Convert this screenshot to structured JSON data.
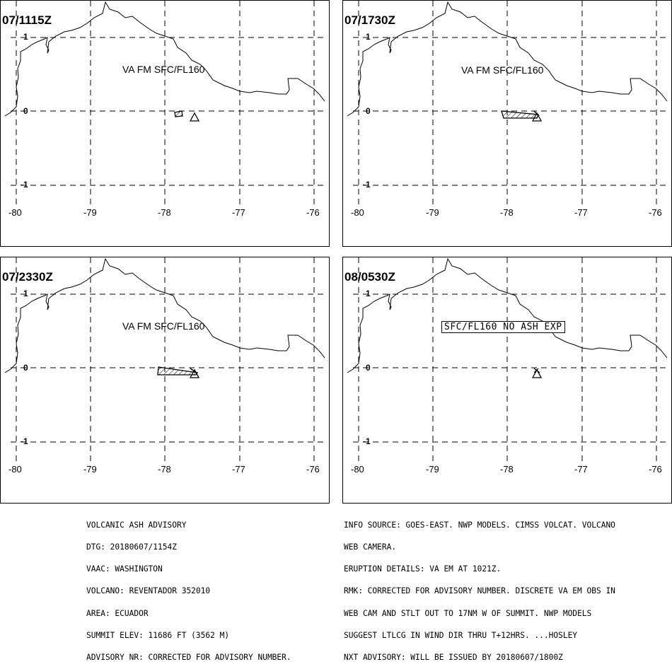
{
  "panels": [
    {
      "time": "07/1115Z",
      "label": "VA FM SFC/FL160",
      "boxed": false,
      "lon_ticks": [
        "-80",
        "-79",
        "-78",
        "-77",
        "-76"
      ],
      "lat_ticks": [
        "1",
        "0",
        "-1"
      ]
    },
    {
      "time": "07/1730Z",
      "label": "VA FM SFC/FL160",
      "boxed": false,
      "lon_ticks": [
        "-80",
        "-79",
        "-78",
        "-77",
        "-76"
      ],
      "lat_ticks": [
        "1",
        "0",
        "-1"
      ]
    },
    {
      "time": "07/2330Z",
      "label": "VA FM SFC/FL160",
      "boxed": false,
      "lon_ticks": [
        "-80",
        "-79",
        "-78",
        "-77",
        "-76"
      ],
      "lat_ticks": [
        "1",
        "0",
        "-1"
      ]
    },
    {
      "time": "08/0530Z",
      "label": "SFC/FL160 NO ASH EXP",
      "boxed": true,
      "lon_ticks": [
        "-80",
        "-79",
        "-78",
        "-77",
        "-76"
      ],
      "lat_ticks": [
        "1",
        "0",
        "-1"
      ]
    }
  ],
  "advisory_left": [
    "VOLCANIC ASH ADVISORY",
    "DTG: 20180607/1154Z",
    "VAAC: WASHINGTON",
    "VOLCANO: REVENTADOR 352010",
    "AREA: ECUADOR",
    "SUMMIT ELEV: 11686 FT (3562 M)",
    "ADVISORY NR: CORRECTED FOR ADVISORY NUMBER."
  ],
  "advisory_right": [
    "INFO SOURCE: GOES-EAST. NWP MODELS. CIMSS VOLCAT. VOLCANO",
    "WEB CAMERA.",
    "ERUPTION DETAILS: VA EM AT 1021Z.",
    "RMK: CORRECTED FOR ADVISORY NUMBER. DISCRETE VA EM OBS IN",
    "WEB CAM AND STLT OUT TO 17NM W OF SUMMIT. NWP MODELS",
    "SUGGEST LTLCG IN WIND DIR THRU T+12HRS. ...HOSLEY",
    "NXT ADVISORY: WILL BE ISSUED BY 20180607/1800Z"
  ],
  "colors": {
    "line": "#000000",
    "background": "#ffffff"
  },
  "icons": {
    "volcano": "triangle-volcano-icon",
    "ash_area": "hatched-polygon"
  }
}
